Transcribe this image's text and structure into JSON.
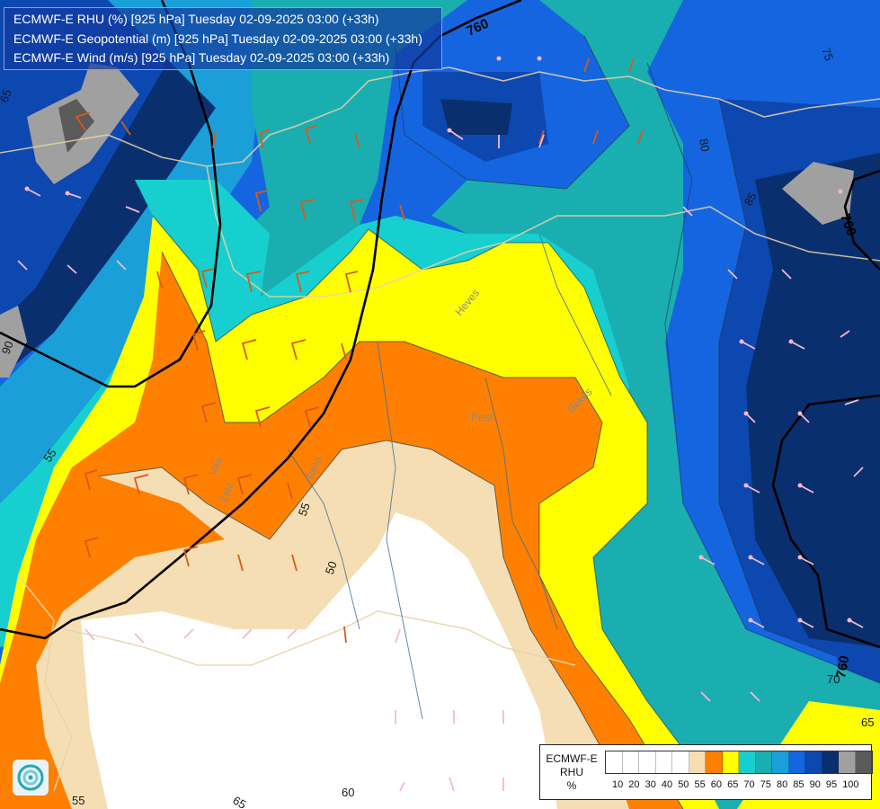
{
  "header": {
    "line1": "ECMWF-E RHU (%) [925 hPa] Tuesday 02-09-2025 03:00 (+33h)",
    "line2": "ECMWF-E Geopotential (m) [925 hPa] Tuesday 02-09-2025 03:00 (+33h)",
    "line3": "ECMWF-E Wind (m/s) [925 hPa] Tuesday 02-09-2025 03:00 (+33h)"
  },
  "geopotential_labels": [
    "760",
    "760",
    "760"
  ],
  "rhu_contour_labels": [
    "80",
    "85",
    "90",
    "55",
    "55",
    "50",
    "70",
    "65",
    "60",
    "65",
    "55",
    "75",
    "65"
  ],
  "place_labels": [
    "Heves",
    "Pest",
    "Békés",
    "Tolna",
    "Vas",
    "Zala"
  ],
  "legend": {
    "title_line1": "ECMWF-E",
    "title_line2": "RHU",
    "unit": "%",
    "colors": [
      "#ffffff",
      "#ffffff",
      "#ffffff",
      "#ffffff",
      "#ffffff",
      "#f5deb3",
      "#ff8000",
      "#ffff00",
      "#17cfcf",
      "#1aaeb0",
      "#1a9fd8",
      "#1565e0",
      "#0d47b0",
      "#0a2f6e",
      "#a0a0a0",
      "#5a5a5a"
    ],
    "ticks": [
      "10",
      "20",
      "30",
      "40",
      "50",
      "55",
      "60",
      "65",
      "70",
      "75",
      "80",
      "85",
      "90",
      "95",
      "100"
    ]
  },
  "logo_icon": "ecmwf-swirl-icon"
}
